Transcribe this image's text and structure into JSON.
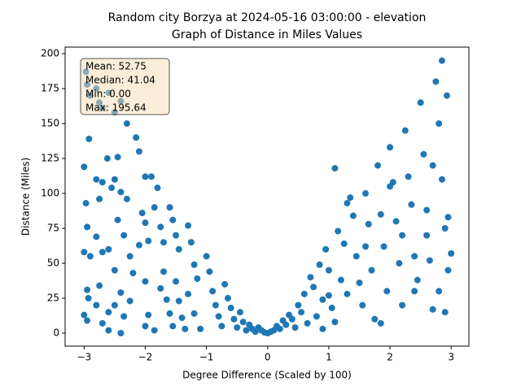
{
  "chart_data": {
    "type": "scatter",
    "title": "Random city Borzya at 2024-05-16 03:00:00  - elevation",
    "subtitle": "Graph of Distance in Miles Values",
    "x_label": "Degree Difference (Scaled by 100)",
    "y_label": "Distance (Miles)",
    "annotations": [
      "Mean: 52.75",
      "Median: 41.04",
      "Min: 0.00",
      "Max: 195.64"
    ],
    "color": "#1f77b4",
    "xlim": [
      -3.31,
      3.29
    ],
    "ylim": [
      -9.3,
      204.7
    ],
    "xticks": [
      {
        "value": -3,
        "label": "−3"
      },
      {
        "value": -2,
        "label": "−2"
      },
      {
        "value": -1,
        "label": "−1"
      },
      0,
      1,
      2,
      3
    ],
    "yticks": [
      0,
      25,
      50,
      75,
      100,
      125,
      150,
      175,
      200
    ],
    "x": [
      -2.97,
      -2.95,
      -2.9,
      -2.92,
      -3.0,
      -2.97,
      -2.95,
      -3.0,
      -2.9,
      -2.95,
      -2.93,
      -3.0,
      -2.95,
      -2.8,
      -2.75,
      -2.7,
      -2.6,
      -2.8,
      -2.7,
      -2.75,
      -2.8,
      -2.7,
      -2.75,
      -2.8,
      -2.7,
      -2.6,
      -2.6,
      -2.62,
      -2.55,
      -2.6,
      -2.5,
      -2.4,
      -2.45,
      -2.5,
      -2.4,
      -2.45,
      -2.35,
      -2.5,
      -2.4,
      -2.5,
      -2.35,
      -2.4,
      -2.3,
      -2.3,
      -2.25,
      -2.2,
      -2.25,
      -2.15,
      -2.1,
      -2.0,
      -2.05,
      -2.0,
      -1.95,
      -2.1,
      -2.0,
      -1.95,
      -2.0,
      -1.85,
      -1.9,
      -1.85,
      -1.8,
      -1.75,
      -1.7,
      -1.7,
      -1.75,
      -1.65,
      -1.6,
      -1.55,
      -1.6,
      -1.55,
      -1.5,
      -1.45,
      -1.5,
      -1.45,
      -1.4,
      -1.35,
      -1.3,
      -1.25,
      -1.2,
      -1.15,
      -1.3,
      -1.2,
      -1.1,
      -1.0,
      -0.95,
      -0.9,
      -0.85,
      -0.8,
      -0.75,
      -0.7,
      -0.65,
      -0.6,
      -0.55,
      -0.5,
      -0.45,
      -0.4,
      -0.35,
      -0.3,
      -0.25,
      -0.2,
      -0.15,
      -0.1,
      -0.05,
      0.0,
      0.05,
      0.1,
      0.15,
      0.2,
      0.25,
      0.3,
      0.35,
      0.4,
      0.45,
      0.5,
      0.55,
      0.6,
      0.65,
      0.7,
      0.75,
      0.8,
      0.85,
      0.9,
      0.95,
      1.0,
      1.05,
      1.1,
      1.15,
      1.2,
      1.25,
      1.3,
      1.35,
      1.4,
      1.45,
      1.5,
      1.55,
      1.6,
      1.65,
      1.7,
      1.75,
      1.8,
      1.85,
      1.9,
      1.95,
      2.0,
      2.05,
      2.1,
      2.15,
      2.2,
      2.25,
      2.3,
      2.35,
      2.4,
      2.45,
      2.5,
      2.55,
      2.6,
      2.65,
      2.7,
      2.75,
      2.8,
      2.85,
      2.9,
      2.95,
      2.9,
      2.85,
      2.93,
      2.95,
      3.0,
      2.8,
      2.7,
      1.1,
      1.3,
      2.0,
      1.85,
      0.9,
      1.6,
      2.4,
      2.6,
      1.0,
      2.2
    ],
    "values": [
      187,
      178,
      170,
      139,
      119,
      93,
      76,
      58,
      55,
      31,
      25,
      13,
      9,
      175,
      165,
      161,
      172,
      110,
      108,
      96,
      69,
      58,
      34,
      20,
      7,
      2,
      15,
      125,
      104,
      60,
      158,
      166,
      126,
      110,
      101,
      81,
      70,
      45,
      29,
      20,
      12,
      0,
      150,
      96,
      55,
      43,
      23,
      140,
      130,
      112,
      86,
      79,
      66,
      63,
      37,
      13,
      5,
      2,
      112,
      90,
      104,
      76,
      65,
      44,
      32,
      24,
      14,
      5,
      90,
      81,
      70,
      60,
      37,
      23,
      11,
      3,
      77,
      65,
      49,
      39,
      28,
      14,
      3,
      55,
      44,
      30,
      20,
      12,
      5,
      35,
      25,
      18,
      10,
      4,
      15,
      8,
      2,
      6,
      3,
      1,
      4,
      2,
      0.5,
      0,
      1,
      2,
      5,
      3,
      9,
      6,
      13,
      10,
      4,
      20,
      15,
      28,
      7,
      40,
      33,
      12,
      49,
      24,
      60,
      45,
      18,
      8,
      73,
      38,
      64,
      28,
      97,
      84,
      55,
      36,
      20,
      100,
      78,
      45,
      10,
      120,
      85,
      62,
      30,
      133,
      108,
      80,
      50,
      20,
      145,
      112,
      92,
      55,
      38,
      165,
      128,
      88,
      52,
      17,
      180,
      150,
      110,
      75,
      45,
      15,
      195,
      170,
      83,
      57,
      30,
      120,
      118,
      93,
      105,
      7,
      3,
      62,
      30,
      70,
      27,
      70
    ]
  }
}
